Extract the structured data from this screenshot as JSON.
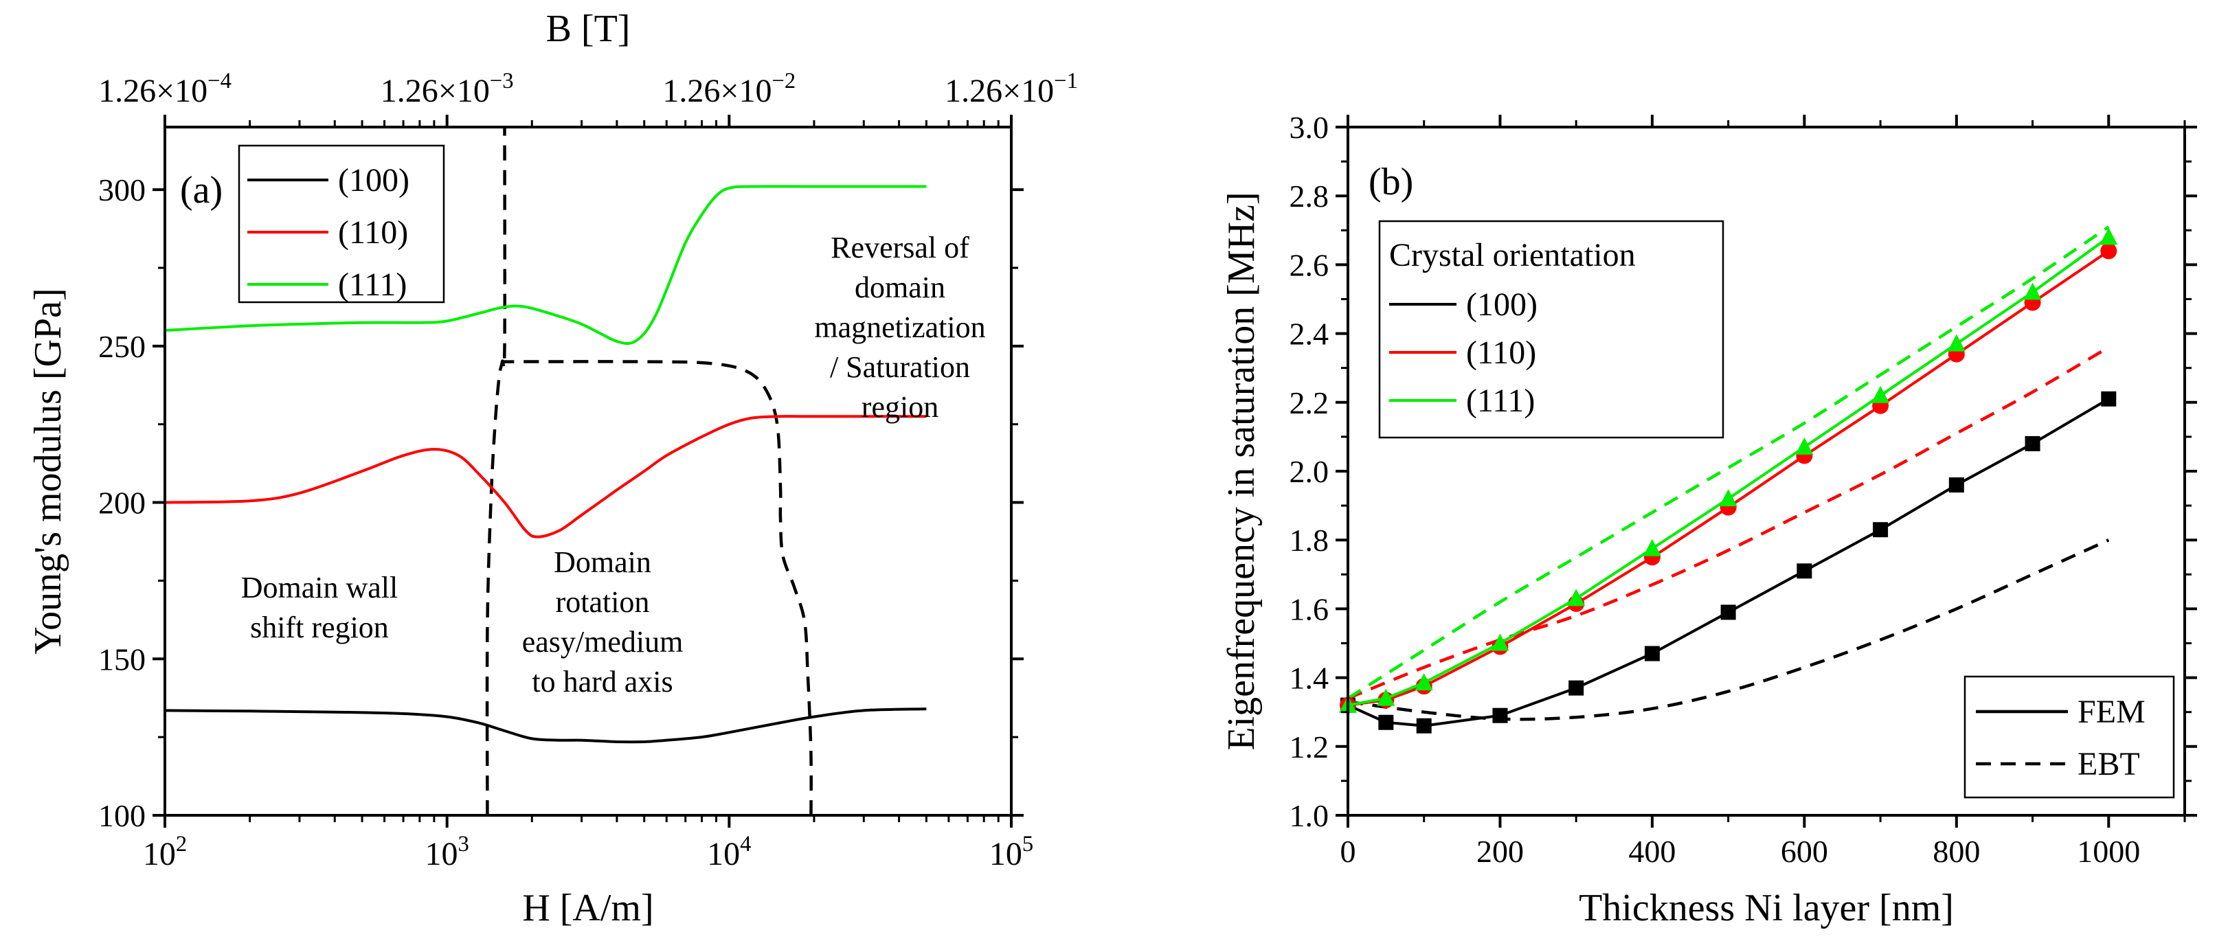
{
  "chart_data": [
    {
      "panel": "(a)",
      "type": "line",
      "xlabel": "H [A/m]",
      "ylabel": "Young's modulus [GPa]",
      "x_scale": "log",
      "xlim": [
        100,
        100000
      ],
      "ylim": [
        100,
        320
      ],
      "xticks": [
        {
          "v": 100,
          "base": "10",
          "exp": "2"
        },
        {
          "v": 1000,
          "base": "10",
          "exp": "3"
        },
        {
          "v": 10000,
          "base": "10",
          "exp": "4"
        },
        {
          "v": 100000,
          "base": "10",
          "exp": "5"
        }
      ],
      "yticks": [
        100,
        150,
        200,
        250,
        300
      ],
      "top_axis": {
        "label": "B [T]",
        "ticks": [
          {
            "v": 100,
            "base": "1.26×10",
            "exp": "−4"
          },
          {
            "v": 1000,
            "base": "1.26×10",
            "exp": "−3"
          },
          {
            "v": 10000,
            "base": "1.26×10",
            "exp": "−2"
          },
          {
            "v": 100000,
            "base": "1.26×10",
            "exp": "−1"
          }
        ]
      },
      "legend_position": "top-left",
      "series": [
        {
          "name": "(100)",
          "color": "#000000",
          "x": [
            100,
            200,
            400,
            700,
            1000,
            1300,
            1600,
            2000,
            2500,
            3000,
            4000,
            5000,
            6000,
            8000,
            10000,
            15000,
            20000,
            30000,
            50000
          ],
          "y": [
            133.5,
            133.3,
            133,
            132.5,
            131.5,
            129.5,
            127,
            124.5,
            124,
            124,
            123.5,
            123.5,
            124,
            125,
            126.5,
            129.5,
            131.5,
            133.5,
            134
          ]
        },
        {
          "name": "(110)",
          "color": "#ff0000",
          "x": [
            100,
            200,
            300,
            500,
            700,
            900,
            1100,
            1300,
            1600,
            1900,
            2100,
            2500,
            3000,
            4000,
            5000,
            6000,
            8000,
            10000,
            12000,
            15000,
            20000,
            30000,
            50000
          ],
          "y": [
            200,
            200.5,
            203,
            210,
            215,
            217,
            215,
            209,
            200,
            191,
            189,
            191,
            196,
            204,
            210,
            215,
            221,
            225,
            227,
            227.5,
            227.5,
            227.5,
            227.5
          ]
        },
        {
          "name": "(111)",
          "color": "#00ee00",
          "x": [
            100,
            200,
            300,
            500,
            800,
            1000,
            1300,
            1600,
            1900,
            2500,
            3000,
            3500,
            4000,
            4500,
            5000,
            5500,
            6000,
            7000,
            8000,
            9000,
            10000,
            12000,
            20000,
            50000
          ],
          "y": [
            255,
            256.5,
            257,
            257.5,
            257.5,
            258,
            260.5,
            262.5,
            262.5,
            259.5,
            257,
            254,
            251.5,
            251,
            254,
            260,
            268,
            283,
            292,
            298,
            300.5,
            301,
            301,
            301
          ]
        }
      ],
      "boundaries": [
        {
          "x": [
            1390,
            1390,
            1430,
            1480,
            1530,
            1570,
            1600,
            1600
          ],
          "y": [
            100,
            160,
            200,
            225,
            240,
            245,
            250,
            320
          ]
        },
        {
          "x": [
            19500,
            19500,
            19000,
            18500,
            17000,
            15500,
            15200,
            15200,
            14800,
            13500,
            11500,
            8500,
            5000,
            1570
          ],
          "y": [
            100,
            120,
            145,
            162,
            173,
            183,
            195,
            205,
            225,
            236,
            242,
            244.5,
            245,
            245
          ]
        }
      ],
      "annotations": [
        {
          "lines": [
            "Domain wall",
            "shift region"
          ]
        },
        {
          "lines": [
            "Domain",
            "rotation",
            "easy/medium",
            "to hard axis"
          ]
        },
        {
          "lines": [
            "Reversal of",
            "domain",
            "magnetization",
            "/ Saturation",
            "region"
          ]
        }
      ]
    },
    {
      "panel": "(b)",
      "type": "line",
      "xlabel": "Thickness Ni layer [nm]",
      "ylabel": "Eigenfrequency in saturation [MHz]",
      "xlim": [
        0,
        1100
      ],
      "ylim": [
        1.0,
        3.0
      ],
      "xticks": [
        "0",
        "200",
        "400",
        "600",
        "800",
        "1000"
      ],
      "yticks": [
        "1.0",
        "1.2",
        "1.4",
        "1.6",
        "1.8",
        "2.0",
        "2.2",
        "2.4",
        "2.6",
        "2.8",
        "3.0"
      ],
      "legend_title": "Crystal orientation",
      "legend_position": "upper-left",
      "line_legend": {
        "position": "lower-right",
        "entries": [
          "FEM",
          "EBT"
        ]
      },
      "series": [
        {
          "name": "(100)",
          "method": "FEM",
          "color": "#000000",
          "marker": "square",
          "x": [
            0,
            50,
            100,
            200,
            300,
            400,
            500,
            600,
            700,
            800,
            900,
            1000
          ],
          "y": [
            1.32,
            1.27,
            1.26,
            1.29,
            1.37,
            1.47,
            1.59,
            1.71,
            1.83,
            1.96,
            2.08,
            2.21
          ]
        },
        {
          "name": "(110)",
          "method": "FEM",
          "color": "#ff0000",
          "marker": "circle",
          "x": [
            0,
            50,
            100,
            200,
            300,
            400,
            500,
            600,
            700,
            800,
            900,
            1000
          ],
          "y": [
            1.32,
            1.335,
            1.375,
            1.49,
            1.615,
            1.75,
            1.895,
            2.045,
            2.19,
            2.34,
            2.49,
            2.64
          ]
        },
        {
          "name": "(111)",
          "method": "FEM",
          "color": "#00ee00",
          "marker": "triangle",
          "x": [
            0,
            50,
            100,
            200,
            300,
            400,
            500,
            600,
            700,
            800,
            900,
            1000
          ],
          "y": [
            1.32,
            1.34,
            1.385,
            1.5,
            1.63,
            1.775,
            1.92,
            2.07,
            2.22,
            2.37,
            2.52,
            2.68
          ]
        },
        {
          "name": "(100)",
          "method": "EBT",
          "color": "#000000",
          "x": [
            0,
            100,
            200,
            300,
            400,
            500,
            600,
            700,
            800,
            900,
            1000
          ],
          "y": [
            1.33,
            1.3,
            1.28,
            1.285,
            1.31,
            1.36,
            1.43,
            1.51,
            1.6,
            1.7,
            1.8
          ]
        },
        {
          "name": "(110)",
          "method": "EBT",
          "color": "#ff0000",
          "x": [
            0,
            100,
            200,
            300,
            400,
            500,
            600,
            700,
            800,
            900,
            1000
          ],
          "y": [
            1.34,
            1.43,
            1.51,
            1.58,
            1.67,
            1.77,
            1.88,
            1.99,
            2.11,
            2.23,
            2.36
          ]
        },
        {
          "name": "(111)",
          "method": "EBT",
          "color": "#00ee00",
          "x": [
            0,
            100,
            200,
            300,
            400,
            500,
            600,
            700,
            800,
            900,
            1000
          ],
          "y": [
            1.34,
            1.48,
            1.62,
            1.75,
            1.88,
            2.01,
            2.14,
            2.28,
            2.42,
            2.56,
            2.71
          ]
        }
      ]
    }
  ]
}
